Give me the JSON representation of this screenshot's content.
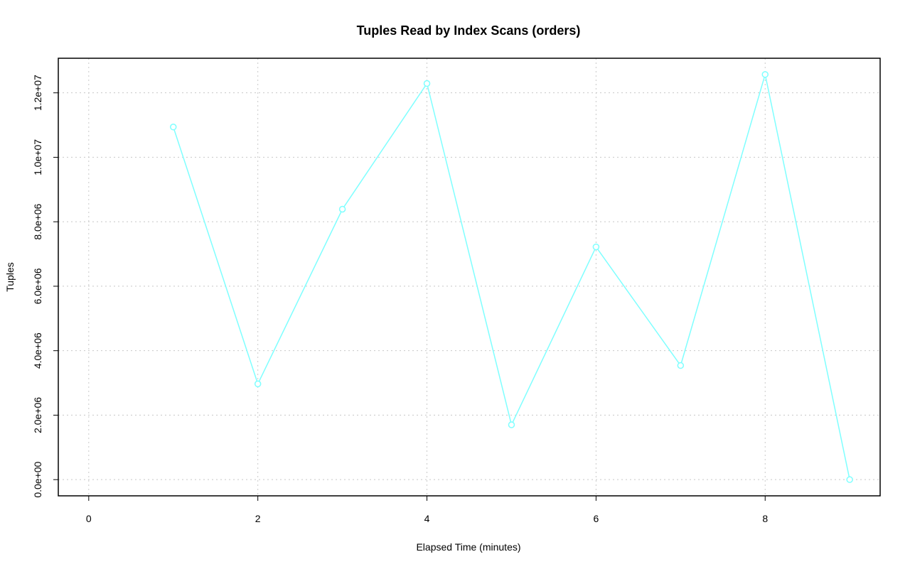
{
  "chart_data": {
    "type": "line",
    "title": "Tuples Read by Index Scans (orders)",
    "x_label": "Elapsed Time (minutes)",
    "y_label": "Tuples",
    "series": [
      {
        "color": "#7fffff",
        "x": [
          1,
          2,
          3,
          4,
          5,
          6,
          7,
          8,
          9
        ],
        "values": [
          10940000,
          2970000,
          8390000,
          12290000,
          1700000,
          7220000,
          3540000,
          12570000,
          0
        ]
      }
    ],
    "xlim": [
      -0.36,
      9.36
    ],
    "ylim": [
      -503000,
      13073000
    ],
    "xticks": [
      0,
      2,
      4,
      6,
      8
    ],
    "yticks": [
      {
        "value": 0,
        "label": "0.0e+00"
      },
      {
        "value": 2000000,
        "label": "2.0e+06"
      },
      {
        "value": 4000000,
        "label": "4.0e+06"
      },
      {
        "value": 6000000,
        "label": "6.0e+06"
      },
      {
        "value": 8000000,
        "label": "8.0e+06"
      },
      {
        "value": 10000000,
        "label": "1.0e+07"
      },
      {
        "value": 12000000,
        "label": "1.2e+07"
      }
    ],
    "grid": true
  }
}
